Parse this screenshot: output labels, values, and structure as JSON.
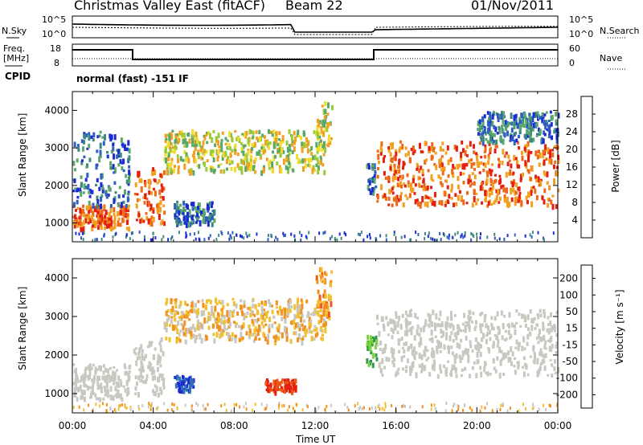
{
  "header": {
    "station": "Christmas Valley East (fitACF)",
    "beam": "Beam 22",
    "date": "01/Nov/2011"
  },
  "params_panel": {
    "nsky_label": "N.Sky",
    "nsearch_label": "N.Search",
    "freq_label_line1": "Freq.",
    "freq_label_line2": "[MHz]",
    "nave_label": "Nave",
    "cpid_label": "CPID",
    "noise_left_ticks": [
      "10^5",
      "10^0"
    ],
    "noise_right_ticks": [
      "10^5",
      "10^0"
    ],
    "freq_ticks": [
      "18",
      "8"
    ],
    "nave_ticks": [
      "60",
      "0"
    ],
    "cpid_value": "normal (fast) -151 IF"
  },
  "chart_data": [
    {
      "type": "heatmap",
      "title": "",
      "xlabel": "",
      "ylabel": "Slant Range [km]",
      "xlim": [
        0,
        24
      ],
      "ylim": [
        500,
        4500
      ],
      "y_ticks": [
        "1000",
        "2000",
        "3000",
        "4000"
      ],
      "colorbar": {
        "label": "Power [dB]",
        "ticks": [
          "4",
          "8",
          "12",
          "16",
          "20",
          "24",
          "28"
        ],
        "colors": [
          "#1a2bd6",
          "#2f5fc0",
          "#3f8a7a",
          "#5aa86a",
          "#9acb3a",
          "#f0dc2a",
          "#f2a020",
          "#ec6a18",
          "#e41e10"
        ]
      },
      "echo_bands": [
        {
          "t": [
            0.0,
            2.8
          ],
          "range": [
            900,
            1500
          ],
          "level": "high"
        },
        {
          "t": [
            0.0,
            2.8
          ],
          "range": [
            1500,
            3500
          ],
          "level": "low"
        },
        {
          "t": [
            3.0,
            4.5
          ],
          "range": [
            1000,
            2500
          ],
          "level": "high"
        },
        {
          "t": [
            4.5,
            12.5
          ],
          "range": [
            2400,
            3500
          ],
          "level": "medium"
        },
        {
          "t": [
            5.0,
            7.0
          ],
          "range": [
            1000,
            1600
          ],
          "level": "low"
        },
        {
          "t": [
            12.0,
            12.8
          ],
          "range": [
            3000,
            4300
          ],
          "level": "medium"
        },
        {
          "t": [
            14.5,
            15.0
          ],
          "range": [
            1800,
            2600
          ],
          "level": "low"
        },
        {
          "t": [
            15.0,
            24.0
          ],
          "range": [
            1500,
            3200
          ],
          "level": "high"
        },
        {
          "t": [
            20.0,
            24.0
          ],
          "range": [
            3200,
            4000
          ],
          "level": "low"
        }
      ]
    },
    {
      "type": "heatmap",
      "title": "",
      "xlabel": "Time UT",
      "ylabel": "Slant Range [km]",
      "xlim": [
        0,
        24
      ],
      "ylim": [
        500,
        4500
      ],
      "x_ticks": [
        "00:00",
        "04:00",
        "08:00",
        "12:00",
        "16:00",
        "20:00",
        "00:00"
      ],
      "y_ticks": [
        "1000",
        "2000",
        "3000",
        "4000"
      ],
      "colorbar": {
        "label": "Velocity [m s⁻¹]",
        "ticks": [
          "200",
          "100",
          "50",
          "15",
          "-15",
          "-50",
          "-100",
          "-200"
        ],
        "colors": [
          "#1a2bd6",
          "#2f6fb8",
          "#2e9a4a",
          "#7cd13a",
          "#c8c8c0",
          "#f0c030",
          "#f29020",
          "#ec5a18",
          "#e41e10"
        ]
      },
      "echo_bands": [
        {
          "t": [
            0.0,
            2.8
          ],
          "range": [
            900,
            1800
          ],
          "velocity": "ground"
        },
        {
          "t": [
            3.0,
            4.5
          ],
          "range": [
            1000,
            2500
          ],
          "velocity": "ground"
        },
        {
          "t": [
            4.5,
            12.5
          ],
          "range": [
            2400,
            3500
          ],
          "velocity": "mixed"
        },
        {
          "t": [
            5.0,
            6.0
          ],
          "range": [
            1100,
            1500
          ],
          "velocity": "high-positive"
        },
        {
          "t": [
            9.5,
            11.0
          ],
          "range": [
            1100,
            1400
          ],
          "velocity": "high-negative"
        },
        {
          "t": [
            12.0,
            12.8
          ],
          "range": [
            3000,
            4300
          ],
          "velocity": "negative"
        },
        {
          "t": [
            14.5,
            15.0
          ],
          "range": [
            1800,
            2600
          ],
          "velocity": "positive"
        },
        {
          "t": [
            15.0,
            24.0
          ],
          "range": [
            1500,
            3200
          ],
          "velocity": "ground"
        }
      ]
    }
  ]
}
